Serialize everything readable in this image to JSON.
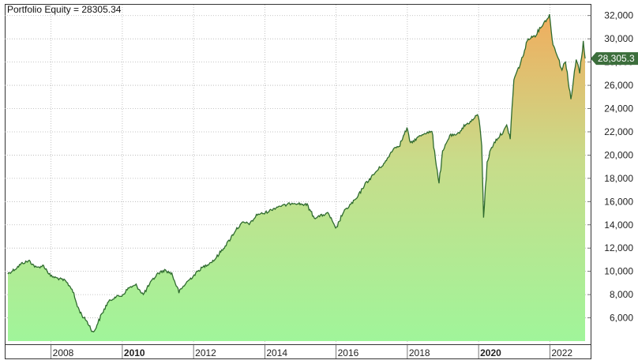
{
  "title": "Portfolio Equity = 28305.34",
  "colors": {
    "line": "#2f6b2f",
    "fill_top": "#f0ad5e",
    "fill_mid": "#c8dc8a",
    "fill_bottom": "#a0f59a",
    "grid": "#b4b4b4",
    "value_badge": "#3c6e3c"
  },
  "chart_data": {
    "type": "area",
    "title": "Portfolio Equity = 28305.34",
    "xlabel": "",
    "ylabel": "",
    "xlim": [
      2006.8,
      2023.0
    ],
    "ylim": [
      4000,
      33000
    ],
    "grid": true,
    "last_value": 28305.34,
    "last_value_label": "28,305.3",
    "y_ticks": [
      6000,
      8000,
      10000,
      12000,
      14000,
      16000,
      18000,
      20000,
      22000,
      24000,
      26000,
      28000,
      30000,
      32000
    ],
    "y_tick_labels": [
      "6,000",
      "8,000",
      "10,000",
      "12,000",
      "14,000",
      "16,000",
      "18,000",
      "20,000",
      "22,000",
      "24,000",
      "26,000",
      "28,000",
      "30,000",
      "32,000"
    ],
    "x_ticks": [
      2008,
      2010,
      2012,
      2014,
      2016,
      2018,
      2020,
      2022
    ],
    "x_tick_labels": [
      "2008",
      "2010",
      "2012",
      "2014",
      "2016",
      "2018",
      "2020",
      "2022"
    ],
    "x_tick_bold": [
      false,
      true,
      false,
      false,
      false,
      false,
      true,
      false
    ],
    "series": [
      {
        "x": [
          2006.8,
          2007.0,
          2007.2,
          2007.4,
          2007.6,
          2007.8,
          2008.0,
          2008.2,
          2008.4,
          2008.6,
          2008.75,
          2008.9,
          2009.0,
          2009.2,
          2009.4,
          2009.6,
          2009.8,
          2010.0,
          2010.2,
          2010.4,
          2010.6,
          2010.8,
          2011.0,
          2011.2,
          2011.4,
          2011.6,
          2011.8,
          2012.0,
          2012.2,
          2012.4,
          2012.6,
          2012.8,
          2013.0,
          2013.2,
          2013.4,
          2013.6,
          2013.8,
          2014.0,
          2014.2,
          2014.4,
          2014.6,
          2014.8,
          2015.0,
          2015.2,
          2015.4,
          2015.6,
          2015.8,
          2016.0,
          2016.2,
          2016.4,
          2016.6,
          2016.8,
          2017.0,
          2017.2,
          2017.4,
          2017.6,
          2017.8,
          2018.0,
          2018.1,
          2018.3,
          2018.5,
          2018.7,
          2018.9,
          2019.0,
          2019.2,
          2019.4,
          2019.6,
          2019.8,
          2020.0,
          2020.1,
          2020.15,
          2020.25,
          2020.35,
          2020.5,
          2020.7,
          2020.8,
          2020.9,
          2021.0,
          2021.2,
          2021.4,
          2021.6,
          2021.8,
          2022.0,
          2022.1,
          2022.2,
          2022.35,
          2022.45,
          2022.6,
          2022.75,
          2022.85,
          2022.95,
          2023.0
        ],
        "values": [
          9800,
          10200,
          10700,
          10900,
          10300,
          10500,
          9600,
          9400,
          9200,
          8500,
          7000,
          6100,
          5800,
          4700,
          6100,
          7300,
          7800,
          7900,
          8600,
          8800,
          8000,
          9000,
          9800,
          10100,
          9800,
          8200,
          9000,
          9600,
          10200,
          10600,
          11000,
          11800,
          12600,
          13600,
          14200,
          14100,
          14900,
          15000,
          15300,
          15600,
          15700,
          15900,
          15800,
          15700,
          14600,
          14800,
          15000,
          13600,
          15000,
          15700,
          16300,
          17400,
          18100,
          18800,
          19400,
          20500,
          20900,
          22300,
          21000,
          21500,
          21900,
          22000,
          17600,
          20200,
          21700,
          21700,
          22500,
          22900,
          23500,
          21000,
          14700,
          19300,
          20500,
          21300,
          22000,
          22500,
          21500,
          26500,
          28000,
          30000,
          30300,
          31200,
          32000,
          29500,
          28800,
          27300,
          28200,
          24700,
          28200,
          27200,
          29700,
          28305
        ]
      }
    ]
  }
}
